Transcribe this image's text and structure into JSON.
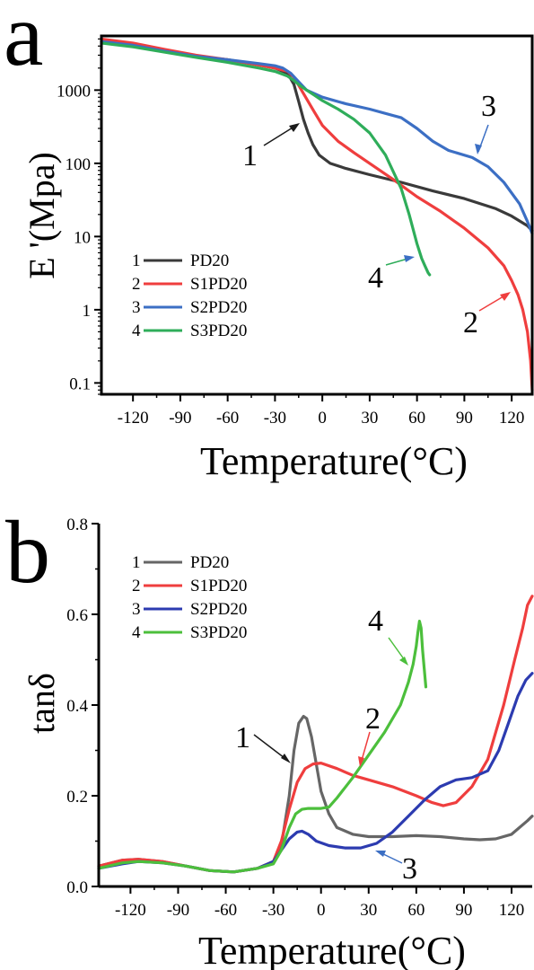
{
  "chart_data": [
    {
      "panel": "a",
      "type": "line",
      "title": "",
      "xlabel": "Temperature(°C)",
      "ylabel": "E '(Mpa)",
      "xlim": [
        -140,
        133
      ],
      "ylim": [
        0.07,
        5500
      ],
      "yscale": "log",
      "xticks": [
        -120,
        -90,
        -60,
        -30,
        0,
        30,
        60,
        90,
        120
      ],
      "xtick_labels": [
        "-120",
        "-90",
        "-60",
        "-30",
        "0",
        "30",
        "60",
        "90",
        "120"
      ],
      "yticks": [
        0.1,
        1,
        10,
        100,
        1000
      ],
      "ytick_labels": [
        "0.1",
        "1",
        "10",
        "100",
        "1000"
      ],
      "grid": false,
      "legend_position": "bottom-left",
      "series": [
        {
          "name": "PD20",
          "index": "1",
          "color": "#3a3a3a",
          "x": [
            -140,
            -120,
            -100,
            -80,
            -60,
            -40,
            -30,
            -22,
            -18,
            -15,
            -12,
            -9,
            -6,
            -2,
            5,
            15,
            30,
            50,
            70,
            90,
            110,
            120,
            130,
            133
          ],
          "y": [
            4700,
            4100,
            3400,
            2900,
            2600,
            2200,
            2000,
            1700,
            1200,
            700,
            400,
            260,
            180,
            130,
            100,
            85,
            70,
            55,
            42,
            33,
            24,
            19,
            14,
            12
          ]
        },
        {
          "name": "S1PD20",
          "index": "2",
          "color": "#ef3e3e",
          "x": [
            -140,
            -120,
            -100,
            -80,
            -60,
            -40,
            -30,
            -22,
            -18,
            -12,
            -5,
            0,
            10,
            20,
            30,
            45,
            60,
            75,
            90,
            105,
            115,
            120,
            124,
            127,
            130,
            132,
            133
          ],
          "y": [
            5000,
            4400,
            3600,
            3000,
            2600,
            2200,
            2000,
            1800,
            1500,
            900,
            500,
            330,
            200,
            140,
            100,
            60,
            35,
            22,
            13,
            7,
            4,
            2.5,
            1.6,
            1.0,
            0.5,
            0.2,
            0.08
          ]
        },
        {
          "name": "S2PD20",
          "index": "3",
          "color": "#3c6fc4",
          "x": [
            -140,
            -120,
            -100,
            -80,
            -60,
            -40,
            -30,
            -25,
            -20,
            -15,
            -10,
            0,
            15,
            30,
            50,
            60,
            70,
            80,
            95,
            105,
            115,
            125,
            130,
            133
          ],
          "y": [
            4600,
            4100,
            3400,
            2900,
            2600,
            2300,
            2150,
            2000,
            1700,
            1300,
            1000,
            800,
            650,
            550,
            420,
            300,
            200,
            150,
            120,
            90,
            55,
            28,
            16,
            11
          ]
        },
        {
          "name": "S3PD20",
          "index": "4",
          "color": "#2fad5a",
          "x": [
            -140,
            -120,
            -100,
            -80,
            -60,
            -40,
            -30,
            -22,
            -18,
            -14,
            -10,
            -5,
            0,
            10,
            20,
            30,
            40,
            50,
            55,
            60,
            63,
            65,
            67,
            68
          ],
          "y": [
            4400,
            3900,
            3300,
            2800,
            2400,
            2000,
            1800,
            1550,
            1350,
            1150,
            1000,
            850,
            720,
            550,
            400,
            260,
            130,
            45,
            20,
            8,
            5,
            4,
            3.2,
            3.0
          ]
        }
      ],
      "annotations": [
        {
          "text": "1",
          "series": "PD20"
        },
        {
          "text": "2",
          "series": "S1PD20"
        },
        {
          "text": "3",
          "series": "S2PD20"
        },
        {
          "text": "4",
          "series": "S3PD20"
        }
      ]
    },
    {
      "panel": "b",
      "type": "line",
      "title": "",
      "xlabel": "Temperature(°C)",
      "ylabel": "tanδ",
      "xlim": [
        -140,
        133
      ],
      "ylim": [
        0.0,
        0.8
      ],
      "yscale": "linear",
      "xticks": [
        -120,
        -90,
        -60,
        -30,
        0,
        30,
        60,
        90,
        120
      ],
      "xtick_labels": [
        "-120",
        "-90",
        "-60",
        "-30",
        "0",
        "30",
        "60",
        "90",
        "120"
      ],
      "yticks": [
        0.0,
        0.2,
        0.4,
        0.6,
        0.8
      ],
      "ytick_labels": [
        "0.0",
        "0.2",
        "0.4",
        "0.6",
        "0.8"
      ],
      "grid": false,
      "legend_position": "top-left",
      "series": [
        {
          "name": "PD20",
          "index": "1",
          "color": "#666666",
          "x": [
            -140,
            -125,
            -115,
            -100,
            -85,
            -70,
            -55,
            -40,
            -30,
            -25,
            -20,
            -17,
            -14,
            -11,
            -9,
            -6,
            -3,
            0,
            5,
            10,
            20,
            30,
            45,
            60,
            75,
            90,
            100,
            110,
            120,
            130,
            133
          ],
          "y": [
            0.045,
            0.058,
            0.06,
            0.055,
            0.045,
            0.035,
            0.032,
            0.04,
            0.055,
            0.09,
            0.2,
            0.3,
            0.36,
            0.375,
            0.37,
            0.33,
            0.27,
            0.21,
            0.16,
            0.13,
            0.115,
            0.11,
            0.11,
            0.112,
            0.11,
            0.105,
            0.103,
            0.105,
            0.115,
            0.145,
            0.155
          ]
        },
        {
          "name": "S1PD20",
          "index": "2",
          "color": "#ef3e3e",
          "x": [
            -140,
            -125,
            -115,
            -100,
            -85,
            -70,
            -55,
            -40,
            -30,
            -25,
            -20,
            -15,
            -10,
            -5,
            0,
            10,
            20,
            30,
            45,
            60,
            70,
            77,
            85,
            95,
            105,
            115,
            122,
            127,
            130,
            133
          ],
          "y": [
            0.045,
            0.058,
            0.06,
            0.055,
            0.045,
            0.035,
            0.032,
            0.04,
            0.055,
            0.1,
            0.17,
            0.23,
            0.26,
            0.27,
            0.272,
            0.26,
            0.245,
            0.235,
            0.22,
            0.2,
            0.185,
            0.178,
            0.185,
            0.22,
            0.28,
            0.4,
            0.5,
            0.57,
            0.62,
            0.64
          ]
        },
        {
          "name": "S2PD20",
          "index": "3",
          "color": "#2c3bb0",
          "x": [
            -140,
            -125,
            -115,
            -100,
            -85,
            -70,
            -55,
            -40,
            -30,
            -25,
            -20,
            -15,
            -12,
            -8,
            -3,
            5,
            15,
            25,
            35,
            45,
            55,
            65,
            75,
            85,
            95,
            105,
            112,
            118,
            124,
            129,
            133
          ],
          "y": [
            0.04,
            0.05,
            0.055,
            0.052,
            0.045,
            0.035,
            0.032,
            0.04,
            0.055,
            0.08,
            0.105,
            0.12,
            0.122,
            0.115,
            0.1,
            0.09,
            0.085,
            0.085,
            0.095,
            0.12,
            0.155,
            0.19,
            0.22,
            0.235,
            0.24,
            0.255,
            0.3,
            0.36,
            0.42,
            0.455,
            0.47
          ]
        },
        {
          "name": "S3PD20",
          "index": "4",
          "color": "#4cbf3c",
          "x": [
            -140,
            -125,
            -115,
            -100,
            -85,
            -70,
            -55,
            -40,
            -30,
            -25,
            -20,
            -16,
            -12,
            -8,
            -4,
            0,
            5,
            10,
            20,
            30,
            40,
            50,
            55,
            58,
            60,
            61,
            62,
            63,
            64,
            65,
            66
          ],
          "y": [
            0.04,
            0.052,
            0.055,
            0.052,
            0.045,
            0.035,
            0.032,
            0.04,
            0.05,
            0.08,
            0.13,
            0.16,
            0.17,
            0.172,
            0.172,
            0.172,
            0.175,
            0.195,
            0.24,
            0.29,
            0.34,
            0.4,
            0.45,
            0.49,
            0.53,
            0.56,
            0.585,
            0.57,
            0.52,
            0.48,
            0.44
          ]
        }
      ],
      "annotations": [
        {
          "text": "1",
          "series": "PD20"
        },
        {
          "text": "2",
          "series": "S1PD20"
        },
        {
          "text": "3",
          "series": "S2PD20"
        },
        {
          "text": "4",
          "series": "S3PD20"
        }
      ]
    }
  ]
}
